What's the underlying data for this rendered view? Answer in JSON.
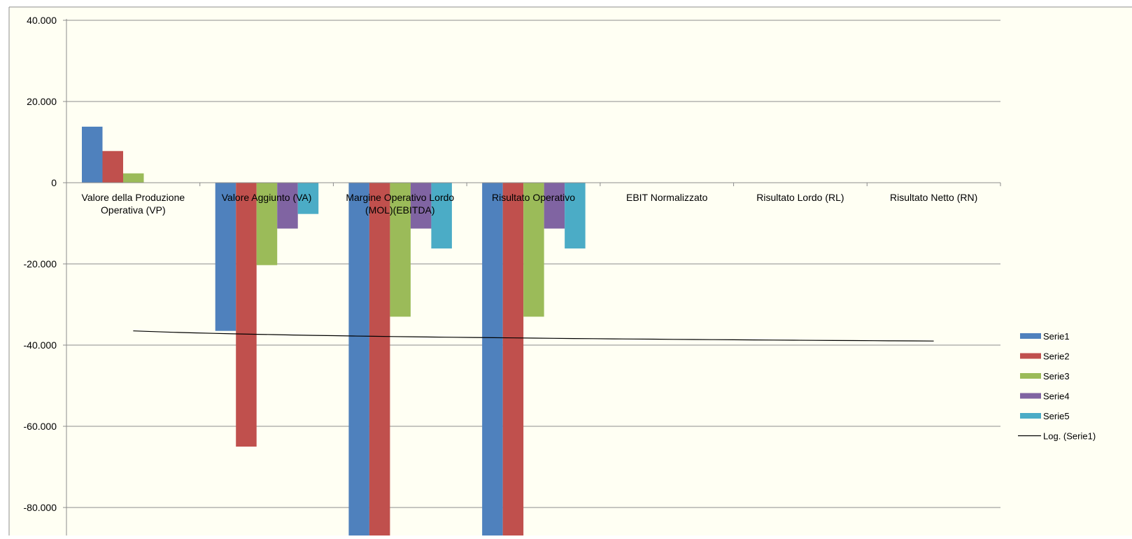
{
  "chart_data": {
    "type": "bar",
    "title": "",
    "xlabel": "",
    "ylabel": "",
    "ylim": [
      -83000,
      40000
    ],
    "yticks": [
      40000,
      20000,
      0,
      -20000,
      -40000,
      -60000,
      -80000
    ],
    "ytick_labels": [
      "40.000",
      "20.000",
      "0",
      "-20.000",
      "-40.000",
      "-60.000",
      "-80.000"
    ],
    "grid": true,
    "legend_position": "right",
    "categories": [
      [
        "Valore della Produzione",
        "Operativa (VP)"
      ],
      [
        "Valore Aggiunto (VA)"
      ],
      [
        "Margine Operativo Lordo",
        "(MOL)(EBITDA)"
      ],
      [
        "Risultato Operativo"
      ],
      [
        "EBIT Normalizzato"
      ],
      [
        "Risultato Lordo (RL)"
      ],
      [
        "Risultato Netto (RN)"
      ]
    ],
    "series": [
      {
        "name": "Serie1",
        "color": "#4F81BD",
        "values": [
          13800,
          -36500,
          -90000,
          -90000,
          0,
          0,
          0
        ]
      },
      {
        "name": "Serie2",
        "color": "#C0504D",
        "values": [
          7800,
          -65000,
          -90000,
          -90000,
          0,
          0,
          0
        ]
      },
      {
        "name": "Serie3",
        "color": "#9BBB59",
        "values": [
          2300,
          -20300,
          -33000,
          -33000,
          0,
          0,
          0
        ]
      },
      {
        "name": "Serie4",
        "color": "#8064A2",
        "values": [
          0,
          -11300,
          -11300,
          -11300,
          0,
          0,
          0
        ]
      },
      {
        "name": "Serie5",
        "color": "#4BACC6",
        "values": [
          0,
          -7700,
          -16200,
          -16200,
          0,
          0,
          0
        ]
      }
    ],
    "trendline": {
      "name": "Log. (Serie1)",
      "type": "logarithmic",
      "color": "#000000",
      "start_value": -36500,
      "end_value": -39000
    }
  }
}
